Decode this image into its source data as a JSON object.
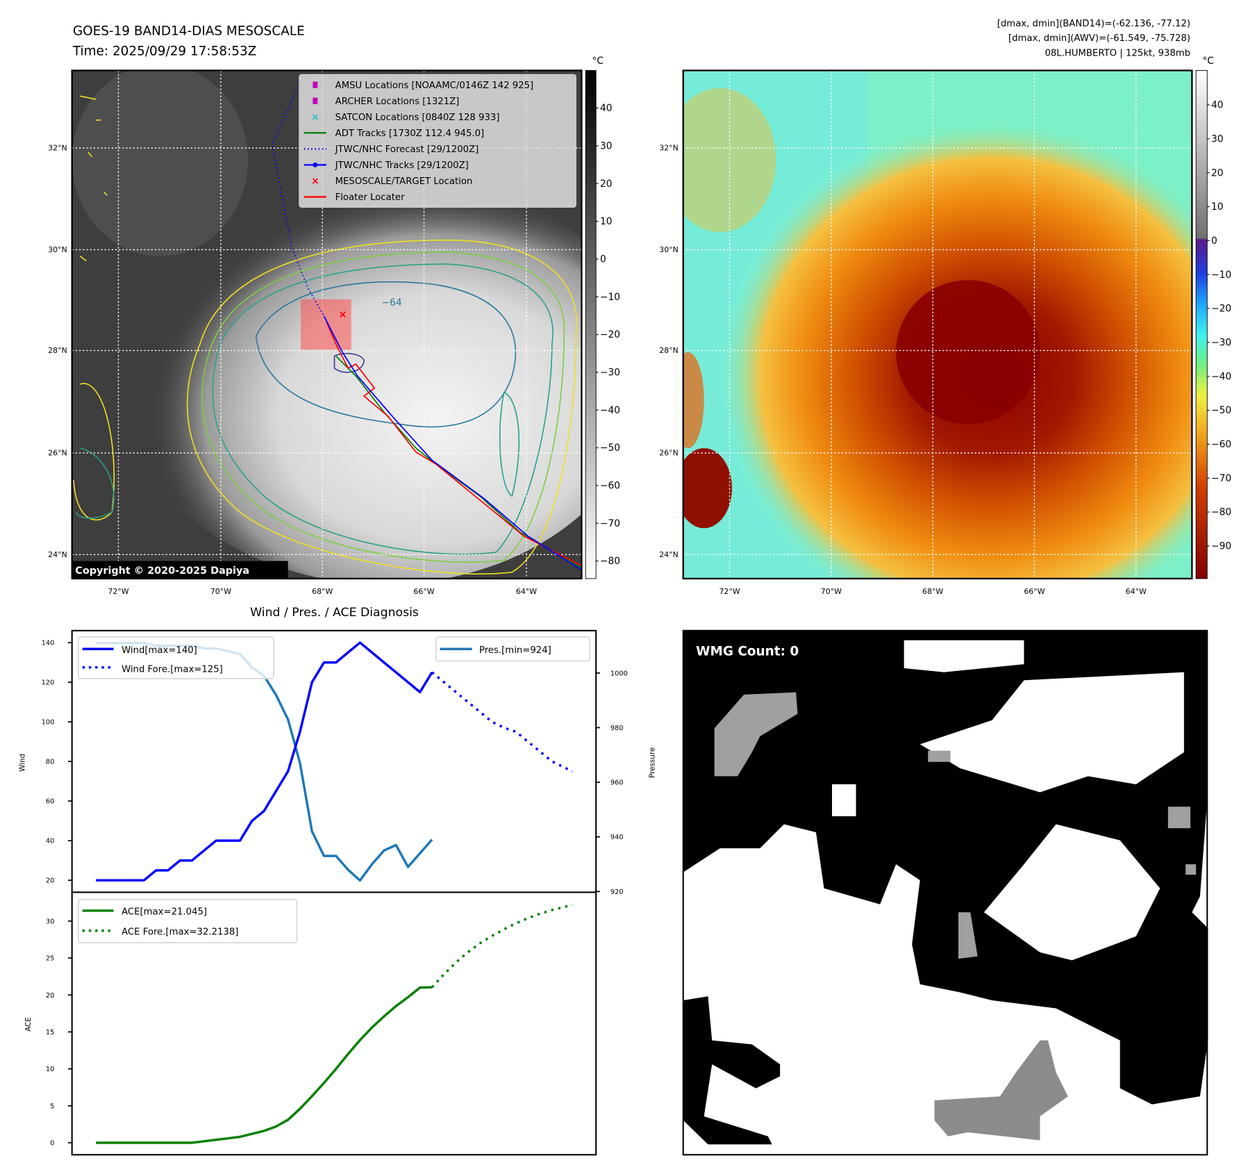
{
  "header": {
    "title": "GOES-19 BAND14-DIAS MESOSCALE",
    "time": "Time: 2025/09/29 17:58:53Z",
    "stats_band14": "[dmax, dmin](BAND14)=(-62.136, -77.12)",
    "stats_awv": "[dmax, dmin](AWV)=(-61.549, -75.728)",
    "storm": "08L.HUMBERTO | 125kt, 938mb"
  },
  "map": {
    "lon_labels": [
      "72°W",
      "70°W",
      "68°W",
      "66°W",
      "64°W"
    ],
    "lat_labels": [
      "32°N",
      "30°N",
      "28°N",
      "26°N",
      "24°N"
    ],
    "contour_label": "−64",
    "copyright": "Copyright © 2020-2025 Dapiya",
    "legend": [
      {
        "label": "AMSU Locations [NOAAMC/0146Z 142 925]",
        "icon": "square-marker",
        "color": "#c000c0"
      },
      {
        "label": "ARCHER Locations [1321Z]",
        "icon": "square-marker",
        "color": "#c000c0"
      },
      {
        "label": "SATCON Locations [0840Z 128 933]",
        "icon": "x-marker",
        "color": "#20c0c0"
      },
      {
        "label": "ADT Tracks [1730Z 112.4 945.0]",
        "icon": "solid-line",
        "color": "#008000"
      },
      {
        "label": "JTWC/NHC Forecast [29/1200Z]",
        "icon": "dotted-line",
        "color": "#0000ff"
      },
      {
        "label": "JTWC/NHC Tracks [29/1200Z]",
        "icon": "line-dot",
        "color": "#0000ff"
      },
      {
        "label": "MESOSCALE/TARGET Location",
        "icon": "x-marker",
        "color": "#ff0000"
      },
      {
        "label": "Floater Locater",
        "icon": "solid-line",
        "color": "#ff0000"
      }
    ]
  },
  "colorbar_left": {
    "unit": "°C",
    "ticks": [
      "40",
      "30",
      "20",
      "10",
      "0",
      "−10",
      "−20",
      "−30",
      "−40",
      "−50",
      "−60",
      "−70",
      "−80"
    ]
  },
  "colorbar_right": {
    "unit": "°C",
    "ticks": [
      "40",
      "30",
      "20",
      "10",
      "0",
      "−10",
      "−20",
      "−30",
      "−40",
      "−50",
      "−60",
      "−70",
      "−80",
      "−90"
    ]
  },
  "wmg": {
    "label": "WMG Count: 0"
  },
  "chart_data": [
    {
      "type": "line",
      "title": "Wind / Pres. / ACE Diagnosis",
      "ylabel": "Wind",
      "ylabel_right": "Pressure",
      "ylim": [
        14,
        146
      ],
      "ylim_right": [
        920,
        1015
      ],
      "yticks": [
        20,
        40,
        60,
        80,
        100,
        120,
        140
      ],
      "yticks_right": [
        920,
        940,
        960,
        980,
        1000
      ],
      "series": [
        {
          "name": "Wind[max=140]",
          "color": "#0000ff",
          "style": "solid",
          "x": [
            0,
            1,
            2,
            3,
            4,
            5,
            6,
            7,
            8,
            9,
            10,
            11,
            12,
            13,
            14,
            15,
            16,
            17,
            18,
            19,
            20,
            21,
            22,
            23,
            24,
            25,
            26,
            27,
            28
          ],
          "values": [
            20,
            20,
            20,
            20,
            20,
            25,
            25,
            30,
            30,
            35,
            40,
            40,
            40,
            50,
            55,
            65,
            75,
            95,
            120,
            130,
            130,
            135,
            140,
            135,
            130,
            125,
            120,
            115,
            125
          ]
        },
        {
          "name": "Wind Fore.[max=125]",
          "color": "#0000ff",
          "style": "dotted",
          "x": [
            28,
            29,
            30,
            31,
            32,
            33,
            34,
            35,
            36,
            37,
            38,
            39.7
          ],
          "values": [
            125,
            120,
            115,
            110,
            105,
            100,
            97,
            95,
            90,
            85,
            80,
            75
          ]
        },
        {
          "name": "Pres.[min=924]",
          "color": "#1f77b4",
          "style": "solid",
          "axis": "right",
          "x": [
            0,
            1,
            2,
            3,
            4,
            5,
            6,
            7,
            8,
            9,
            10,
            11,
            12,
            13,
            14,
            15,
            16,
            17,
            18,
            19,
            20,
            21,
            22,
            23,
            24,
            25,
            26,
            27,
            28
          ],
          "values": [
            1011,
            1011,
            1011,
            1011,
            1011,
            1010,
            1010,
            1010,
            1010,
            1009,
            1009,
            1008,
            1007,
            1002,
            999,
            992,
            983,
            967,
            942,
            933,
            933,
            928,
            924,
            930,
            935,
            937,
            929,
            934,
            939
          ]
        }
      ]
    },
    {
      "type": "line",
      "ylabel": "ACE",
      "ylim": [
        -1.5,
        33.5
      ],
      "yticks": [
        0,
        5,
        10,
        15,
        20,
        25,
        30
      ],
      "series": [
        {
          "name": "ACE[max=21.045]",
          "color": "#008000",
          "style": "solid",
          "x": [
            0,
            1,
            2,
            3,
            4,
            5,
            6,
            7,
            8,
            9,
            10,
            11,
            12,
            13,
            14,
            15,
            16,
            17,
            18,
            19,
            20,
            21,
            22,
            23,
            24,
            25,
            26,
            27,
            28
          ],
          "values": [
            0,
            0,
            0,
            0,
            0,
            0,
            0,
            0,
            0,
            0.2,
            0.4,
            0.6,
            0.8,
            1.2,
            1.6,
            2.2,
            3.1,
            4.6,
            6.3,
            8.1,
            10,
            12,
            13.9,
            15.6,
            17.1,
            18.5,
            19.7,
            21.0,
            21.045
          ]
        },
        {
          "name": "ACE Fore.[max=32.2138]",
          "color": "#008000",
          "style": "dotted",
          "x": [
            28,
            29,
            30,
            31,
            32,
            33,
            34,
            35,
            36,
            37,
            38,
            39.7
          ],
          "values": [
            21.045,
            22.8,
            24.4,
            25.8,
            27.0,
            28.0,
            28.9,
            29.7,
            30.4,
            31.0,
            31.5,
            32.2
          ]
        }
      ]
    }
  ]
}
